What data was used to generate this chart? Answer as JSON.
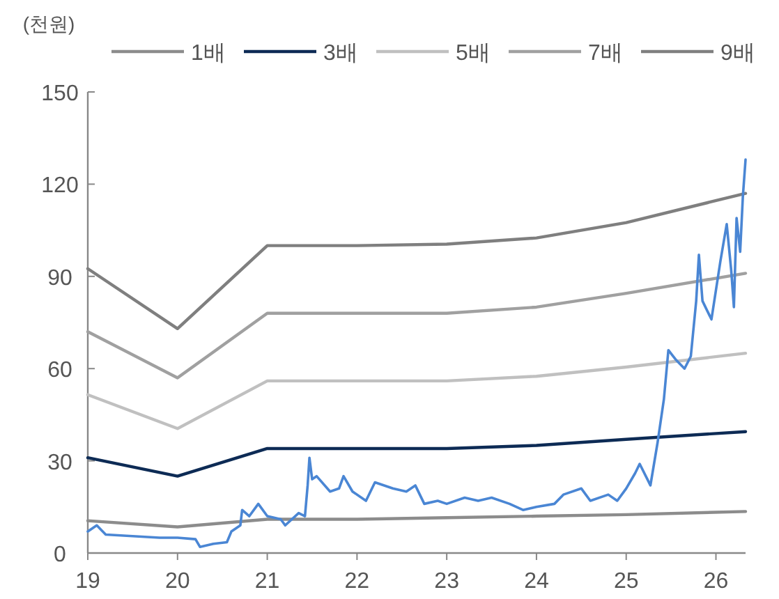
{
  "chart_data": {
    "type": "line",
    "ylabel": "(천원)",
    "xlim": [
      19,
      26.33
    ],
    "ylim": [
      0,
      150
    ],
    "xticks": [
      19,
      20,
      21,
      22,
      23,
      24,
      25,
      26
    ],
    "yticks": [
      0,
      30,
      60,
      90,
      120,
      150
    ],
    "grid": false,
    "legend": "top",
    "marker": "none",
    "line_style": "solid",
    "series": [
      {
        "name": "1배",
        "color": "#8c8c8c",
        "x": [
          19,
          20,
          21,
          22,
          23,
          24,
          25,
          26.33
        ],
        "values": [
          10.5,
          8.5,
          11,
          11,
          11.5,
          12,
          12.5,
          13.5
        ]
      },
      {
        "name": "3배",
        "color": "#0d2b55",
        "x": [
          19,
          20,
          21,
          22,
          23,
          24,
          25,
          26.33
        ],
        "values": [
          31,
          25,
          34,
          34,
          34,
          35,
          37,
          39.5
        ]
      },
      {
        "name": "5배",
        "color": "#c0c0c0",
        "x": [
          19,
          20,
          21,
          22,
          23,
          24,
          25,
          26.33
        ],
        "values": [
          51.5,
          40.5,
          56,
          56,
          56,
          57.5,
          60.5,
          65
        ]
      },
      {
        "name": "7배",
        "color": "#a0a0a0",
        "x": [
          19,
          20,
          21,
          22,
          23,
          24,
          25,
          26.33
        ],
        "values": [
          72,
          57,
          78,
          78,
          78,
          80,
          84.5,
          91
        ]
      },
      {
        "name": "9배",
        "color": "#7f7f7f",
        "x": [
          19,
          20,
          21,
          22,
          23,
          24,
          25,
          26.33
        ],
        "values": [
          92.5,
          73,
          100,
          100,
          100.5,
          102.5,
          107.5,
          117
        ]
      },
      {
        "color": "#4a86d4",
        "x": [
          19,
          19.1,
          19.2,
          19.5,
          19.8,
          20,
          20.2,
          20.25,
          20.4,
          20.55,
          20.6,
          20.7,
          20.72,
          20.8,
          20.9,
          21,
          21.15,
          21.2,
          21.35,
          21.42,
          21.45,
          21.47,
          21.5,
          21.55,
          21.7,
          21.8,
          21.85,
          21.95,
          22.1,
          22.2,
          22.4,
          22.55,
          22.65,
          22.75,
          22.9,
          23,
          23.2,
          23.35,
          23.5,
          23.7,
          23.85,
          24,
          24.2,
          24.3,
          24.5,
          24.6,
          24.8,
          24.9,
          25,
          25.1,
          25.15,
          25.27,
          25.35,
          25.42,
          25.47,
          25.55,
          25.65,
          25.72,
          25.78,
          25.81,
          25.85,
          25.95,
          26.05,
          26.12,
          26.17,
          26.2,
          26.23,
          26.27,
          26.3,
          26.33
        ],
        "values": [
          7,
          9,
          6,
          5.5,
          5,
          5,
          4.5,
          2,
          3,
          3.5,
          7,
          9,
          14,
          12,
          16,
          12,
          11,
          9,
          13,
          12,
          22,
          31,
          24,
          25,
          20,
          21,
          25,
          20,
          17,
          23,
          21,
          20,
          22,
          16,
          17,
          16,
          18,
          17,
          18,
          16,
          14,
          15,
          16,
          19,
          21,
          17,
          19,
          17,
          21,
          26,
          29,
          22,
          36,
          50,
          66,
          63,
          60,
          64,
          82,
          97,
          82,
          76,
          95,
          107,
          92,
          80,
          109,
          98,
          116,
          128
        ]
      }
    ]
  }
}
